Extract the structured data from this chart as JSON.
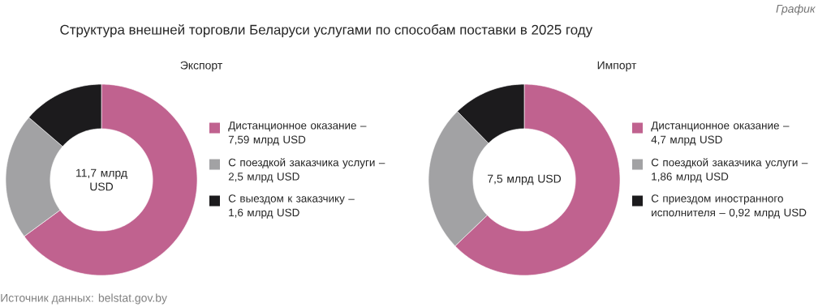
{
  "chart_data": [
    {
      "type": "donut",
      "title": "Структура внешней торговли Беларуси услугами по способам поставки в 2025 году",
      "subtitle": "Экспорт",
      "categories": [
        "Дистанционное оказание –",
        "С поездкой заказчика услуги –",
        "С выездом к заказчику –"
      ],
      "values": [
        7.59,
        2.5,
        1.6
      ],
      "value_labels": [
        "7,59 млрд USD",
        "2,5 млрд USD",
        "1,6 млрд USD"
      ],
      "colors": [
        "#c0628f",
        "#a2a2a4",
        "#1c1b1d"
      ],
      "legend": "right",
      "annotations": [
        "11,7 млрд USD",
        "График",
        "Источник данных: belstat.gov.by"
      ]
    },
    {
      "type": "donut",
      "subtitle": "Импорт",
      "categories": [
        "Дистанционное оказание –",
        "С поездкой заказчика услуги –",
        "С приездом иностранного исполнителя –"
      ],
      "values": [
        4.7,
        1.86,
        0.92
      ],
      "value_labels": [
        "4,7 млрд USD",
        "1,86 млрд USD",
        "0,92 млрд USD"
      ],
      "colors": [
        "#c0628f",
        "#a2a2a4",
        "#1c1b1d"
      ],
      "legend": "right",
      "annotations": [
        "7,5 млрд USD"
      ]
    }
  ]
}
